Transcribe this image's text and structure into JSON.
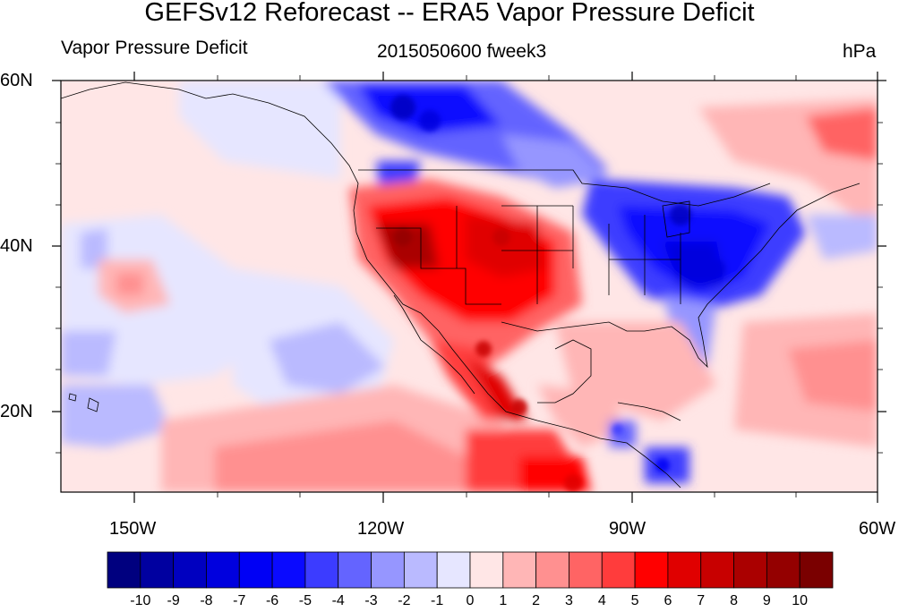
{
  "map": {
    "title": "GEFSv12 Reforecast -- ERA5 Vapor Pressure Deficit",
    "left_subtitle": "Vapor Pressure Deficit",
    "center_subtitle": "2015050600 fweek3",
    "right_subtitle": "hPa",
    "lat_labels": [
      "60N",
      "40N",
      "20N"
    ],
    "lon_labels": [
      "150W",
      "120W",
      "90W",
      "60W"
    ],
    "region": "North America, Eastern Pacific, Gulf of Mexico, Caribbean"
  },
  "colorbar": {
    "ticks": [
      "-10",
      "-9",
      "-8",
      "-7",
      "-6",
      "-5",
      "-4",
      "-3",
      "-2",
      "-1",
      "0",
      "1",
      "2",
      "3",
      "4",
      "5",
      "6",
      "7",
      "8",
      "9",
      "10"
    ],
    "colors": [
      "#00007f",
      "#0000a0",
      "#0000c0",
      "#0000de",
      "#0000f5",
      "#0a0aff",
      "#3c3cff",
      "#6464ff",
      "#9696ff",
      "#babaff",
      "#e6e6ff",
      "#ffe6e6",
      "#ffb6b6",
      "#ff9090",
      "#ff6464",
      "#ff3c3c",
      "#ff0000",
      "#e00000",
      "#c80000",
      "#aa0000",
      "#940000",
      "#7a0000"
    ]
  }
}
